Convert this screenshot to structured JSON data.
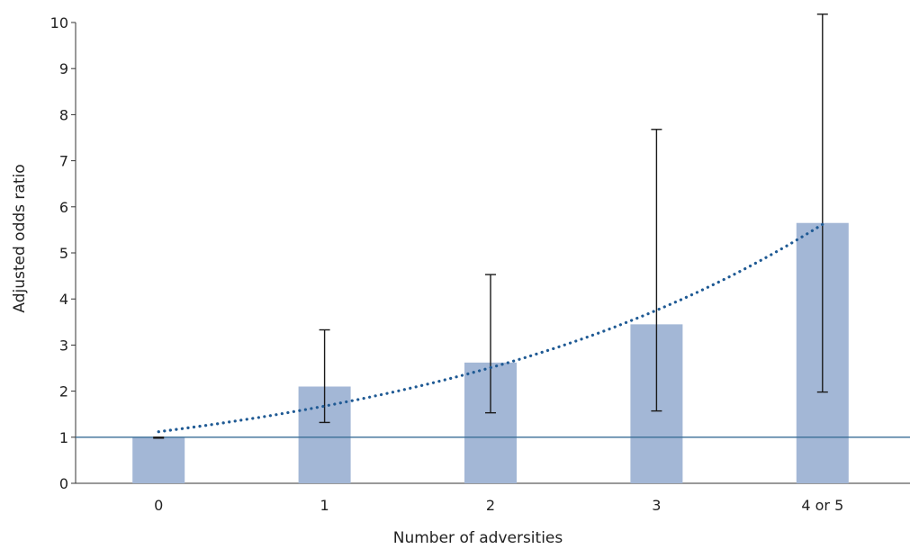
{
  "chart_data": {
    "type": "bar",
    "title": "",
    "xlabel": "Number of adversities",
    "ylabel": "Adjusted odds ratio",
    "categories": [
      "0",
      "1",
      "2",
      "3",
      "4 or 5"
    ],
    "values": [
      1.0,
      2.1,
      2.62,
      3.45,
      5.65
    ],
    "error_lower": [
      0.98,
      1.32,
      1.53,
      1.57,
      1.98
    ],
    "error_upper": [
      1.0,
      3.33,
      4.53,
      7.68,
      10.18
    ],
    "ylim": [
      0,
      10
    ],
    "yticks": [
      "0",
      "1",
      "2",
      "3",
      "4",
      "5",
      "6",
      "7",
      "8",
      "9",
      "10"
    ],
    "reference_line": 1.0,
    "trendline": {
      "style": "dotted",
      "start_value": 1.12,
      "end_value": 5.62
    },
    "grid": false,
    "legend": "none",
    "colors": {
      "bar": "#a3b7d6",
      "error_bar": "#1a1a1a",
      "trendline": "#1f5a94",
      "reference_line": "#3a6e96",
      "axis": "#333333"
    }
  }
}
